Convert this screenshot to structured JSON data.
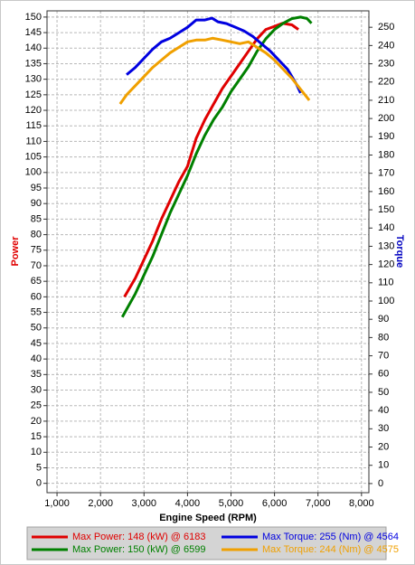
{
  "chart_data": {
    "type": "line",
    "xlabel": "Engine Speed (RPM)",
    "ylabel": "Power",
    "y2label": "Torque",
    "xlim": [
      770,
      8170
    ],
    "xticks": [
      {
        "value": 1000,
        "label": "1,000"
      },
      {
        "value": 2000,
        "label": "2,000"
      },
      {
        "value": 3000,
        "label": "3,000"
      },
      {
        "value": 4000,
        "label": "4,000"
      },
      {
        "value": 5000,
        "label": "5,000"
      },
      {
        "value": 6000,
        "label": "6,000"
      },
      {
        "value": 7000,
        "label": "7,000"
      },
      {
        "value": 8000,
        "label": "8,000"
      }
    ],
    "ylim": [
      -3,
      152
    ],
    "yticks": [
      0,
      5,
      10,
      15,
      20,
      25,
      30,
      35,
      40,
      45,
      50,
      55,
      60,
      65,
      70,
      75,
      80,
      85,
      90,
      95,
      100,
      105,
      110,
      115,
      120,
      125,
      130,
      135,
      140,
      145,
      150
    ],
    "y2lim": [
      -5,
      259
    ],
    "y2ticks": [
      0,
      10,
      20,
      30,
      40,
      50,
      60,
      70,
      80,
      90,
      100,
      110,
      120,
      130,
      140,
      150,
      160,
      170,
      180,
      190,
      200,
      210,
      220,
      230,
      240,
      250
    ],
    "grid": true,
    "series": [
      {
        "name": "Max Power: 148 (kW) @ 6183",
        "color": "#e00000",
        "x": [
          2550,
          2800,
          3000,
          3200,
          3400,
          3600,
          3800,
          4000,
          4200,
          4400,
          4600,
          4800,
          5000,
          5200,
          5400,
          5600,
          5800,
          6000,
          6183,
          6400,
          6550
        ],
        "values": [
          60,
          66,
          72,
          78,
          85,
          91,
          97,
          102,
          111,
          117,
          122,
          127,
          131,
          135,
          139,
          143,
          146,
          147,
          148,
          147.5,
          146
        ]
      },
      {
        "name": "Max Power: 150 (kW) @ 6599",
        "color": "#008000",
        "x": [
          2500,
          2800,
          3000,
          3200,
          3400,
          3600,
          3800,
          4000,
          4200,
          4400,
          4600,
          4800,
          5000,
          5200,
          5400,
          5600,
          5800,
          6000,
          6200,
          6400,
          6599,
          6750,
          6850
        ],
        "values": [
          53.5,
          61,
          67,
          73,
          80,
          87,
          93,
          99,
          106,
          112,
          117,
          121,
          126,
          130,
          134,
          139,
          143,
          146,
          148,
          149.5,
          150,
          149.5,
          148
        ]
      },
      {
        "name": "Max Torque: 255 (Nm) @ 4564",
        "color": "#0000e0",
        "axis": "y2",
        "x": [
          2600,
          2800,
          3000,
          3200,
          3400,
          3600,
          3800,
          4000,
          4200,
          4400,
          4564,
          4700,
          4900,
          5100,
          5300,
          5500,
          5700,
          5900,
          6100,
          6300,
          6500,
          6600
        ],
        "values": [
          224,
          228,
          233,
          238,
          242,
          244,
          247,
          250,
          254,
          254,
          255,
          253,
          252,
          250,
          248,
          245,
          241,
          237,
          232,
          227,
          219,
          214
        ]
      },
      {
        "name": "Max Torque: 244 (Nm) @ 4575",
        "color": "#f0a000",
        "axis": "y2",
        "x": [
          2450,
          2600,
          2800,
          3000,
          3200,
          3400,
          3600,
          3800,
          4000,
          4200,
          4400,
          4575,
          4800,
          5000,
          5200,
          5400,
          5600,
          5800,
          6000,
          6200,
          6400,
          6600,
          6800
        ],
        "values": [
          208,
          213,
          218,
          223,
          228,
          232,
          236,
          239,
          242,
          243,
          243,
          244,
          243,
          242,
          241,
          242,
          239,
          236,
          232,
          227,
          222,
          216,
          210
        ]
      }
    ]
  }
}
